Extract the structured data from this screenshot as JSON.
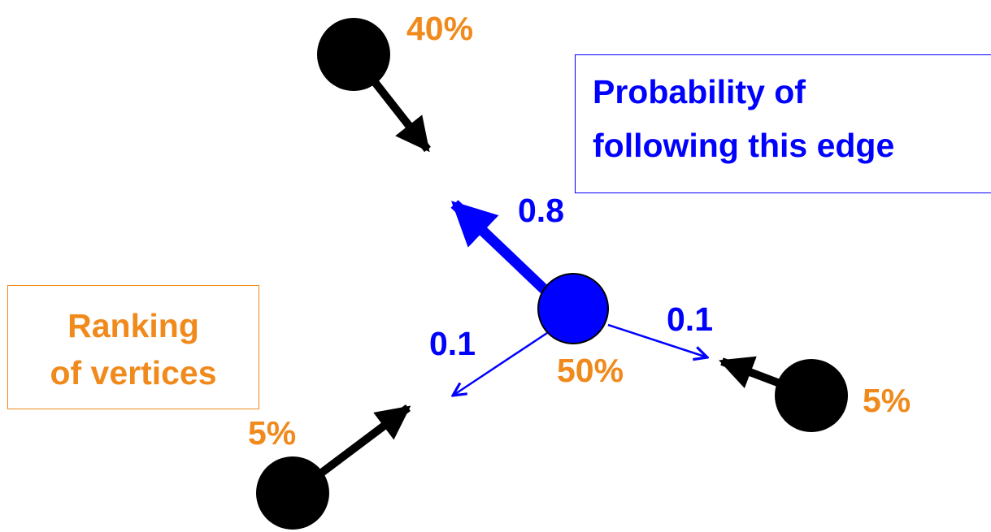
{
  "legend_boxes": {
    "edge_probability": {
      "line1": "Probability of",
      "line2": "following this edge",
      "color": "#0000ff"
    },
    "vertex_ranking": {
      "line1": "Ranking",
      "line2": "of vertices",
      "color": "#f08a1c"
    }
  },
  "vertex_ranks": {
    "top_left": "40%",
    "center": "50%",
    "bottom_left": "5%",
    "right": "5%"
  },
  "edge_probabilities": {
    "to_upper_left": "0.8",
    "to_lower_left": "0.1",
    "to_right": "0.1"
  },
  "colors": {
    "rank_color": "#f08a1c",
    "probability_color": "#0000ff",
    "center_vertex_fill": "#0000ff",
    "other_vertex_fill": "#000000"
  }
}
